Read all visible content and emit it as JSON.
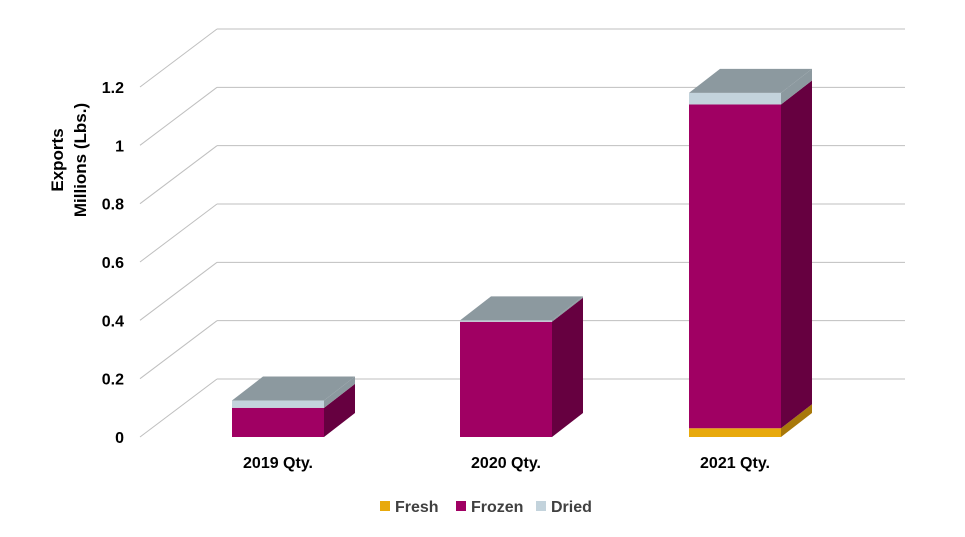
{
  "chart_data": {
    "type": "bar",
    "stacked": true,
    "three_d": true,
    "categories": [
      "2019  Qty.",
      "2020 Qty.",
      "2021 Qty."
    ],
    "series": [
      {
        "name": "Fresh",
        "values": [
          0.0,
          0.0,
          0.03
        ],
        "color": "#E8A90C"
      },
      {
        "name": "Frozen",
        "values": [
          0.1,
          0.395,
          1.11
        ],
        "color": "#A00063"
      },
      {
        "name": "Dried",
        "values": [
          0.025,
          0.005,
          0.04
        ],
        "color": "#C3D3DC"
      }
    ],
    "ylabel_lines": [
      "Exports",
      "Millions (Lbs.)"
    ],
    "ylim": [
      0,
      1.2
    ],
    "yticks": [
      0,
      0.2,
      0.4,
      0.6,
      0.8,
      1,
      1.2
    ],
    "ytick_labels": [
      "0",
      "0.2",
      "0.4",
      "0.6",
      "0.8",
      "1",
      "1.2"
    ],
    "grid": true,
    "legend_position": "bottom",
    "colors": {
      "gridline": "#BFBFBF",
      "top_face": "#8C999F",
      "frozen_side": "#660040",
      "fresh_side": "#A8780A",
      "dried_side": "#8C999F"
    }
  }
}
